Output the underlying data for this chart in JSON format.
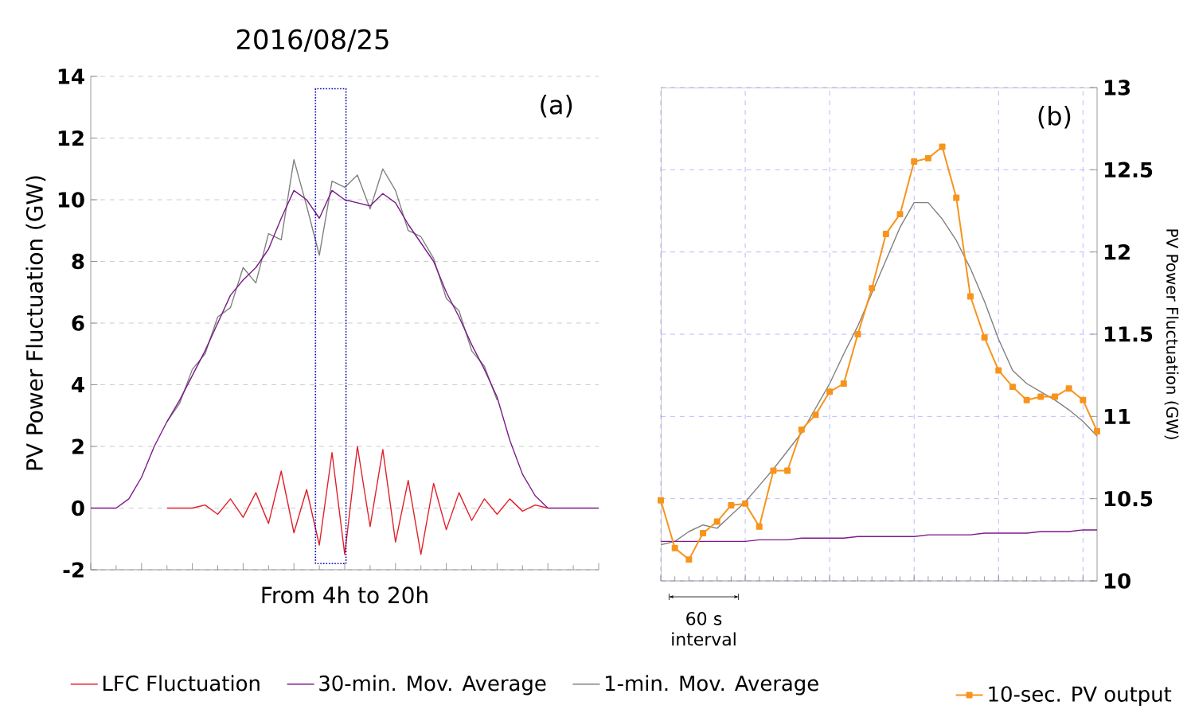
{
  "chart_data": [
    {
      "type": "line",
      "title": "2016/08/25",
      "xlabel": "From 4h to 20h",
      "ylabel": "PV Power Fluctuation (GW)",
      "categories": [
        null,
        null,
        null,
        null,
        null,
        null,
        null,
        null,
        null,
        null,
        null,
        null,
        null,
        null,
        null,
        null,
        null,
        null,
        null,
        null,
        null,
        null,
        null,
        null,
        null,
        null,
        null,
        null,
        null,
        null,
        null,
        null,
        null,
        null,
        null,
        null,
        null,
        null,
        null,
        null,
        null
      ],
      "series": [
        {
          "name": "LFC Fluctuation",
          "color": "#e0202a",
          "values": [
            null,
            null,
            null,
            null,
            null,
            null,
            0,
            0,
            0,
            0.1,
            -0.2,
            0.3,
            -0.3,
            0.5,
            -0.5,
            1.2,
            -0.8,
            0.6,
            -1.2,
            1.8,
            -1.5,
            2.0,
            -0.6,
            1.9,
            -1.1,
            0.9,
            -1.5,
            0.8,
            -0.7,
            0.5,
            -0.4,
            0.3,
            -0.2,
            0.3,
            -0.1,
            0.1,
            0,
            null,
            null,
            null,
            null
          ]
        },
        {
          "name": "30-min. Mov. Average",
          "color": "#7b1a8a",
          "values": [
            0,
            0,
            0,
            0.3,
            1.0,
            2.0,
            2.8,
            3.5,
            4.3,
            5.1,
            6.0,
            6.9,
            7.4,
            7.8,
            8.4,
            9.4,
            10.3,
            10.0,
            9.4,
            10.3,
            10.0,
            9.9,
            9.8,
            10.2,
            9.9,
            9.2,
            8.6,
            8.0,
            7.0,
            6.2,
            5.3,
            4.5,
            3.6,
            2.2,
            1.1,
            0.4,
            0,
            0,
            0,
            0,
            0
          ]
        },
        {
          "name": "1-min. Mov. Average",
          "color": "#808080",
          "values": [
            null,
            null,
            null,
            null,
            null,
            null,
            2.8,
            3.4,
            4.5,
            5.0,
            6.2,
            6.5,
            7.8,
            7.3,
            8.9,
            8.7,
            11.3,
            9.8,
            8.2,
            10.6,
            10.4,
            10.8,
            9.7,
            11.0,
            10.3,
            9.0,
            8.8,
            8.1,
            6.8,
            6.4,
            5.1,
            4.6,
            3.5,
            null,
            null,
            null,
            null,
            null,
            null,
            null,
            null
          ]
        }
      ],
      "ylim": [
        -2,
        14
      ],
      "yticks": [
        -2,
        0,
        2,
        4,
        6,
        8,
        10,
        12,
        14
      ],
      "grid": "y",
      "legend": "bottom",
      "marker": "none",
      "annotations": [
        "(a)"
      ]
    },
    {
      "type": "line",
      "ylabel": "PV Power Fluctuation (GW)",
      "categories": [
        null,
        null,
        null,
        null,
        null,
        null,
        null,
        null,
        null,
        null,
        null,
        null,
        null,
        null,
        null,
        null,
        null,
        null,
        null,
        null,
        null,
        null,
        null,
        null,
        null,
        null,
        null,
        null,
        null,
        null,
        null,
        null
      ],
      "series": [
        {
          "name": "10-sec. PV output",
          "color": "#f7941d",
          "marker": "square",
          "values": [
            10.49,
            10.2,
            10.13,
            10.29,
            10.36,
            10.46,
            10.47,
            10.33,
            10.67,
            10.67,
            10.92,
            11.01,
            11.15,
            11.2,
            11.5,
            11.78,
            12.11,
            12.23,
            12.55,
            12.57,
            12.64,
            12.33,
            11.73,
            11.48,
            11.28,
            11.18,
            11.1,
            11.12,
            11.12,
            11.17,
            11.1,
            10.91
          ]
        },
        {
          "color": "#7b1a8a",
          "values": [
            10.24,
            10.24,
            10.24,
            10.24,
            10.24,
            10.24,
            10.24,
            10.25,
            10.25,
            10.25,
            10.26,
            10.26,
            10.26,
            10.26,
            10.27,
            10.27,
            10.27,
            10.27,
            10.27,
            10.28,
            10.28,
            10.28,
            10.28,
            10.29,
            10.29,
            10.29,
            10.29,
            10.3,
            10.3,
            10.3,
            10.31,
            10.31
          ]
        },
        {
          "color": "#808080",
          "values": [
            10.22,
            10.24,
            10.3,
            10.34,
            10.32,
            10.4,
            10.48,
            10.58,
            10.68,
            10.79,
            10.9,
            11.05,
            11.2,
            11.38,
            11.55,
            11.75,
            11.95,
            12.15,
            12.3,
            12.3,
            12.2,
            12.07,
            11.9,
            11.7,
            11.47,
            11.28,
            11.2,
            11.15,
            11.1,
            11.04,
            10.97,
            10.88
          ]
        }
      ],
      "ylim": [
        10,
        13
      ],
      "yticks": [
        10,
        10.5,
        11,
        11.5,
        12,
        12.5,
        13
      ],
      "grid": true,
      "legend": "bottom right",
      "annotations": [
        "(b)",
        "60 s interval"
      ]
    }
  ]
}
